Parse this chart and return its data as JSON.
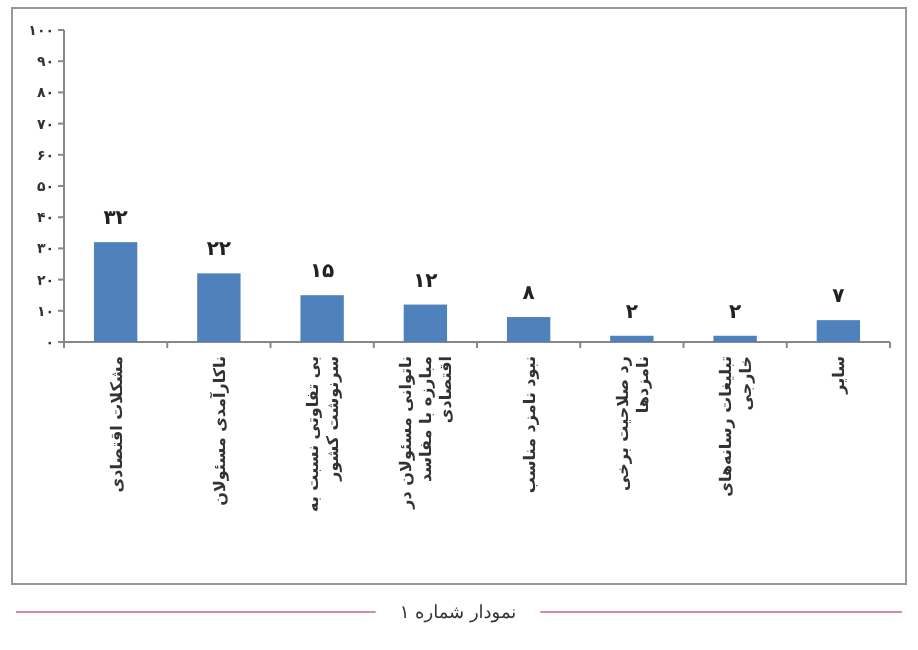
{
  "chart_data": {
    "type": "bar",
    "categories": [
      "مشکلات اقتصادی",
      "ناکارآمدی مسئولان",
      "بی تفاوتی نسبت به سرنوشت کشور",
      "ناتوانی مسئولان در مبارزه با مفاسد اقتصادی",
      "نبود نامزد مناسب",
      "رد صلاحیت برخی نامزدها",
      "تبلیغات رسانه‌های خارجی",
      "سایر"
    ],
    "values": [
      32,
      22,
      15,
      12,
      8,
      2,
      2,
      7
    ],
    "value_labels": [
      "۳۲",
      "۲۲",
      "۱۵",
      "۱۲",
      "۸",
      "۲",
      "۲",
      "۷"
    ],
    "color": "#4f81bd",
    "ylim": [
      0,
      100
    ],
    "yticks": [
      {
        "value": 0,
        "label": "۰"
      },
      {
        "value": 10,
        "label": "۱۰"
      },
      {
        "value": 20,
        "label": "۲۰"
      },
      {
        "value": 30,
        "label": "۳۰"
      },
      {
        "value": 40,
        "label": "۴۰"
      },
      {
        "value": 50,
        "label": "۵۰"
      },
      {
        "value": 60,
        "label": "۶۰"
      },
      {
        "value": 70,
        "label": "۷۰"
      },
      {
        "value": 80,
        "label": "۸۰"
      },
      {
        "value": 90,
        "label": "۹۰"
      },
      {
        "value": 100,
        "label": "۱۰۰"
      }
    ],
    "annotations": [
      "نمودار شماره ۱"
    ]
  }
}
